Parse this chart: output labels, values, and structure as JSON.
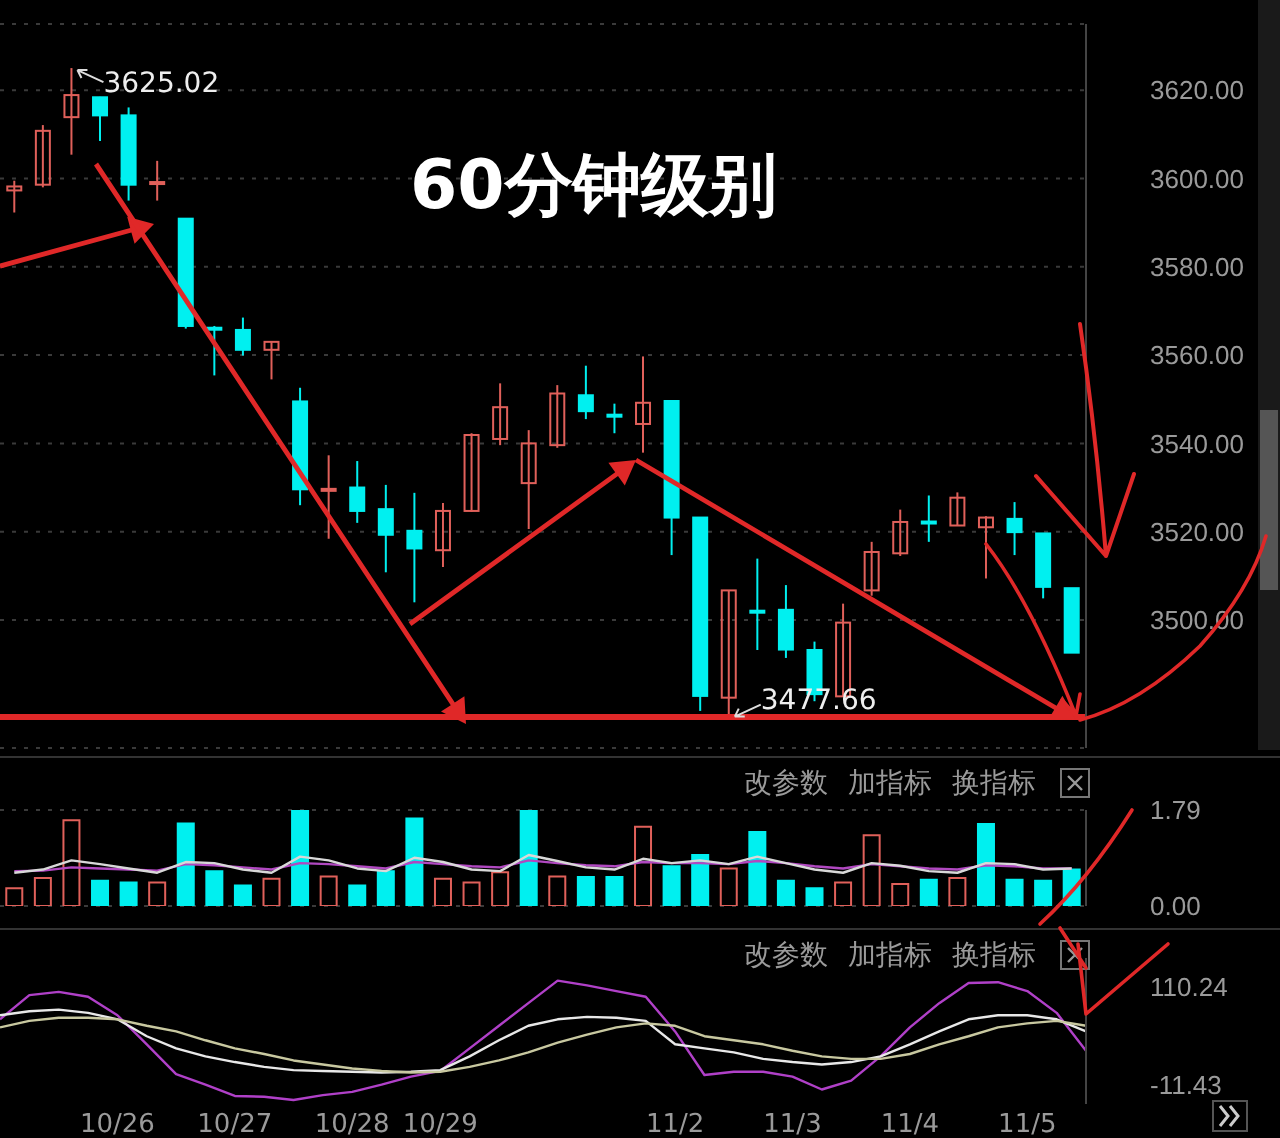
{
  "chart_data": [
    {
      "type": "candlestick",
      "title": "60分钟级别",
      "categories": [
        null,
        null,
        null,
        null,
        null,
        null,
        null,
        null,
        null,
        null,
        null,
        null,
        null,
        null,
        null,
        null,
        null,
        null,
        null,
        null,
        null,
        null,
        null,
        null,
        null,
        null,
        null,
        null,
        null,
        null,
        null,
        null,
        null,
        null,
        null,
        null,
        null,
        null
      ],
      "ohlc": [
        [
          3597.3,
          3599.5,
          3592.3,
          3598.2
        ],
        [
          3598.6,
          3612.1,
          3598,
          3610.8
        ],
        [
          3613.9,
          3625.02,
          3605.4,
          3618.9
        ],
        [
          3618.4,
          3618.5,
          3608.5,
          3614.3
        ],
        [
          3614.3,
          3616.1,
          3595,
          3598.6
        ],
        [
          3599,
          3604,
          3595,
          3599.2
        ],
        [
          3590.9,
          3591,
          3566,
          3566.6
        ],
        [
          3566.2,
          3566.6,
          3555.4,
          3566
        ],
        [
          3565.7,
          3568.5,
          3559.9,
          3561.2
        ],
        [
          3561.2,
          3563,
          3554.5,
          3563
        ],
        [
          3549.5,
          3552.6,
          3526,
          3529.6
        ],
        [
          3529.6,
          3537.3,
          3518.4,
          3529.7
        ],
        [
          3530,
          3536,
          3522,
          3524.7
        ],
        [
          3525.1,
          3530.6,
          3510.8,
          3519.3
        ],
        [
          3520.2,
          3528.8,
          3504,
          3516.2
        ],
        [
          3515.8,
          3526.5,
          3512,
          3524.7
        ],
        [
          3524.7,
          3542.3,
          3524.5,
          3541.9
        ],
        [
          3541,
          3553.6,
          3539.6,
          3548.2
        ],
        [
          3531,
          3543,
          3520.6,
          3540
        ],
        [
          3539.6,
          3553.2,
          3539,
          3551.3
        ],
        [
          3550.9,
          3557.6,
          3545.5,
          3547.3
        ],
        [
          3546.5,
          3549,
          3542.3,
          3546.3
        ],
        [
          3544.4,
          3559.7,
          3537.9,
          3549.2
        ],
        [
          3549.6,
          3549.6,
          3514.7,
          3523.2
        ],
        [
          3523.2,
          3523.2,
          3479.4,
          3482.8
        ],
        [
          3482.4,
          3506.7,
          3477.66,
          3506.7
        ],
        [
          3502.1,
          3513.9,
          3493.2,
          3501.9
        ],
        [
          3502.3,
          3507.9,
          3491.4,
          3493.3
        ],
        [
          3493.2,
          3495.1,
          3481.6,
          3483.2
        ],
        [
          3482.7,
          3503.7,
          3482.7,
          3499.4
        ],
        [
          3506.7,
          3517.7,
          3505.5,
          3515.4
        ],
        [
          3515.1,
          3525,
          3514.5,
          3522.2
        ],
        [
          3522.3,
          3528.2,
          3517.7,
          3522.1
        ],
        [
          3521.4,
          3528.9,
          3521.4,
          3527.7
        ],
        [
          3521,
          3523.5,
          3509.4,
          3523.2
        ],
        [
          3522.9,
          3526.7,
          3514.7,
          3519.9
        ],
        [
          3519.6,
          3519.6,
          3504.9,
          3507.5
        ],
        [
          3507.2,
          3507.2,
          3492.6,
          3492.6
        ]
      ],
      "colors": [
        "#e0605a",
        "#e0605a",
        "#e0605a",
        "#00f0f0",
        "#00f0f0",
        "#e0605a",
        "#00f0f0",
        "#00f0f0",
        "#00f0f0",
        "#e0605a",
        "#00f0f0",
        "#e0605a",
        "#00f0f0",
        "#00f0f0",
        "#00f0f0",
        "#e0605a",
        "#e0605a",
        "#e0605a",
        "#e0605a",
        "#e0605a",
        "#00f0f0",
        "#00f0f0",
        "#e0605a",
        "#00f0f0",
        "#00f0f0",
        "#e0605a",
        "#00f0f0",
        "#00f0f0",
        "#00f0f0",
        "#e0605a",
        "#e0605a",
        "#e0605a",
        "#00f0f0",
        "#e0605a",
        "#e0605a",
        "#00f0f0",
        "#00f0f0",
        "#00f0f0"
      ],
      "ylim": [
        3471,
        3635
      ],
      "yticks": [
        {
          "value": 3500,
          "label": "3500.00"
        },
        {
          "value": 3520,
          "label": "3520.00"
        },
        {
          "value": 3540,
          "label": "3540.00"
        },
        {
          "value": 3560,
          "label": "3560.00"
        },
        {
          "value": 3580,
          "label": "3580.00"
        },
        {
          "value": 3600,
          "label": "3600.00"
        },
        {
          "value": 3620,
          "label": "3620.00"
        }
      ],
      "grid": "y",
      "tick_labels": "y",
      "ref_lines": [
        {
          "axis": "y",
          "value": 3478,
          "color": "#e02828"
        }
      ],
      "annotations": [
        "3625.02",
        "3477.66"
      ]
    },
    {
      "type": "bar",
      "categories": [
        null,
        null,
        null,
        null,
        null,
        null,
        null,
        null,
        null,
        null,
        null,
        null,
        null,
        null,
        null,
        null,
        null,
        null,
        null,
        null,
        null,
        null,
        null,
        null,
        null,
        null,
        null,
        null,
        null,
        null,
        null,
        null,
        null,
        null,
        null,
        null,
        null,
        null
      ],
      "series": [
        {
          "values": [
            0.33,
            0.52,
            1.6,
            0.47,
            0.44,
            0.44,
            1.54,
            0.65,
            0.38,
            0.51,
            1.79,
            0.55,
            0.38,
            0.65,
            1.63,
            0.51,
            0.44,
            0.63,
            1.79,
            0.55,
            0.54,
            0.54,
            1.48,
            0.74,
            0.95,
            0.7,
            1.38,
            0.47,
            0.33,
            0.44,
            1.32,
            0.41,
            0.49,
            0.52,
            1.53,
            0.49,
            0.47,
            0.68
          ],
          "colors": [
            "#e0605a",
            "#e0605a",
            "#e0605a",
            "#00f0f0",
            "#00f0f0",
            "#e0605a",
            "#00f0f0",
            "#00f0f0",
            "#00f0f0",
            "#e0605a",
            "#00f0f0",
            "#e0605a",
            "#00f0f0",
            "#00f0f0",
            "#00f0f0",
            "#e0605a",
            "#e0605a",
            "#e0605a",
            "#00f0f0",
            "#e0605a",
            "#00f0f0",
            "#00f0f0",
            "#e0605a",
            "#00f0f0",
            "#00f0f0",
            "#e0605a",
            "#00f0f0",
            "#00f0f0",
            "#00f0f0",
            "#e0605a",
            "#e0605a",
            "#e0605a",
            "#00f0f0",
            "#e0605a",
            "#00f0f0",
            "#00f0f0",
            "#00f0f0",
            "#00f0f0"
          ]
        },
        {
          "type": "line",
          "color": "#b048c0",
          "values": [
            0.65,
            0.66,
            0.72,
            0.7,
            0.68,
            0.66,
            0.78,
            0.76,
            0.72,
            0.68,
            0.8,
            0.78,
            0.74,
            0.7,
            0.82,
            0.78,
            0.74,
            0.72,
            0.85,
            0.8,
            0.76,
            0.74,
            0.82,
            0.8,
            0.8,
            0.78,
            0.84,
            0.8,
            0.74,
            0.7,
            0.78,
            0.74,
            0.7,
            0.68,
            0.76,
            0.74,
            0.7,
            0.7
          ]
        },
        {
          "type": "line",
          "color": "#d8d8d8",
          "values": [
            0.62,
            0.68,
            0.85,
            0.78,
            0.7,
            0.62,
            0.82,
            0.8,
            0.68,
            0.62,
            0.92,
            0.85,
            0.7,
            0.65,
            0.9,
            0.82,
            0.68,
            0.65,
            0.95,
            0.84,
            0.72,
            0.68,
            0.88,
            0.8,
            0.85,
            0.78,
            0.92,
            0.8,
            0.68,
            0.62,
            0.8,
            0.75,
            0.65,
            0.62,
            0.8,
            0.78,
            0.68,
            0.7
          ]
        }
      ],
      "ylim": [
        0,
        1.79
      ],
      "yticks": [
        {
          "value": 0,
          "label": "0.00"
        },
        1.79
      ],
      "grid": "y",
      "tick_labels": "y",
      "annotations": [
        "改参数",
        "加指标",
        "换指标"
      ]
    },
    {
      "type": "line",
      "categories": [
        null,
        null,
        null,
        null,
        "10/26",
        null,
        null,
        null,
        "10/27",
        null,
        null,
        null,
        "10/28",
        null,
        null,
        "10/29",
        null,
        null,
        null,
        null,
        null,
        null,
        null,
        "11/2",
        null,
        null,
        null,
        "11/3",
        null,
        null,
        null,
        "11/4",
        null,
        null,
        null,
        "11/5",
        null,
        null
      ],
      "series": [
        {
          "color": "#b040c8",
          "values": [
            70,
            100,
            104,
            98,
            75,
            39,
            2,
            -11,
            -25,
            -26,
            -30,
            -24,
            -20,
            -11,
            -1,
            6,
            34,
            62,
            90,
            118,
            112,
            105,
            98,
            55,
            1,
            5,
            5,
            -1,
            -17,
            -6,
            24,
            60,
            90,
            115,
            116,
            105,
            78,
            31
          ]
        },
        {
          "color": "#e8e8e8",
          "values": [
            75,
            80,
            82,
            78,
            70,
            49,
            34,
            24,
            17,
            11,
            7,
            6,
            5,
            4,
            5,
            7,
            24,
            44,
            62,
            70,
            73,
            72,
            68,
            39,
            34,
            29,
            21,
            17,
            14,
            17,
            24,
            39,
            55,
            70,
            75,
            75,
            70,
            55
          ]
        },
        {
          "color": "#c8c8a0",
          "values": [
            60,
            68,
            72,
            72,
            70,
            62,
            55,
            44,
            34,
            27,
            19,
            14,
            9,
            6,
            4,
            5,
            11,
            19,
            29,
            41,
            51,
            60,
            65,
            62,
            49,
            44,
            39,
            31,
            24,
            21,
            21,
            27,
            39,
            49,
            60,
            65,
            68,
            62
          ]
        }
      ],
      "ylim": [
        -35,
        146
      ],
      "yticks": [
        -11.43,
        110.24
      ],
      "marker": "none",
      "annotations": [
        "改参数",
        "加指标",
        "换指标"
      ]
    }
  ]
}
